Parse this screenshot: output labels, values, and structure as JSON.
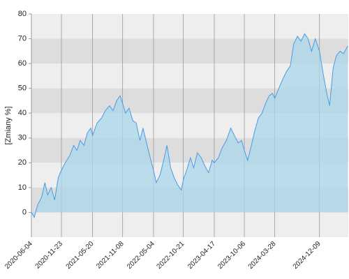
{
  "chart_data": {
    "type": "area",
    "y_label": "[Zmiany %]",
    "x": [
      "2020-06-04",
      "2020-06-20",
      "2020-07-10",
      "2020-08-01",
      "2020-08-20",
      "2020-09-05",
      "2020-09-25",
      "2020-10-15",
      "2020-11-05",
      "2020-11-23",
      "2020-12-15",
      "2021-01-10",
      "2021-02-01",
      "2021-02-20",
      "2021-03-10",
      "2021-04-01",
      "2021-04-20",
      "2021-05-10",
      "2021-05-20",
      "2021-06-15",
      "2021-07-10",
      "2021-08-01",
      "2021-08-25",
      "2021-09-15",
      "2021-10-05",
      "2021-10-25",
      "2021-11-08",
      "2021-11-25",
      "2021-12-15",
      "2022-01-05",
      "2022-01-25",
      "2022-02-15",
      "2022-03-05",
      "2022-03-25",
      "2022-04-15",
      "2022-05-04",
      "2022-05-20",
      "2022-06-10",
      "2022-07-01",
      "2022-07-20",
      "2022-08-10",
      "2022-08-30",
      "2022-09-20",
      "2022-10-10",
      "2022-10-21",
      "2022-11-10",
      "2022-12-01",
      "2022-12-20",
      "2023-01-10",
      "2023-02-01",
      "2023-02-20",
      "2023-03-15",
      "2023-04-05",
      "2023-04-17",
      "2023-05-10",
      "2023-06-01",
      "2023-06-25",
      "2023-07-20",
      "2023-08-10",
      "2023-09-01",
      "2023-09-20",
      "2023-10-06",
      "2023-10-25",
      "2023-11-15",
      "2023-12-05",
      "2023-12-25",
      "2024-01-15",
      "2024-02-05",
      "2024-02-25",
      "2024-03-15",
      "2024-03-28",
      "2024-04-20",
      "2024-05-15",
      "2024-06-05",
      "2024-06-25",
      "2024-07-15",
      "2024-08-05",
      "2024-08-25",
      "2024-09-15",
      "2024-10-05",
      "2024-10-25",
      "2024-11-15",
      "2024-12-09",
      "2025-01-01",
      "2025-01-20",
      "2025-02-05",
      "2025-02-25",
      "2025-03-15",
      "2025-04-05",
      "2025-04-25",
      "2025-05-20"
    ],
    "values": [
      0,
      -2,
      3,
      6,
      12,
      7,
      10,
      5,
      14,
      17,
      20,
      23,
      27,
      25,
      29,
      27,
      32,
      34,
      31,
      36,
      38,
      41,
      43,
      41,
      45,
      47,
      44,
      40,
      42,
      37,
      36,
      29,
      34,
      28,
      22,
      17,
      12,
      15,
      21,
      27,
      18,
      14,
      11,
      9,
      13,
      17,
      22,
      18,
      24,
      22,
      19,
      16,
      21,
      20,
      22,
      26,
      29,
      34,
      31,
      28,
      29,
      25,
      21,
      27,
      33,
      38,
      40,
      44,
      47,
      48,
      46,
      50,
      54,
      57,
      59,
      68,
      71,
      69,
      72,
      70,
      65,
      70,
      65,
      55,
      48,
      43,
      58,
      63,
      65,
      64,
      67
    ],
    "line_color": "#4a9be8",
    "fill_color": "#a8d5ea",
    "xlim": [
      "2020-06-04",
      "2025-05-23"
    ],
    "xticks": [
      "2020-06-04",
      "2020-11-23",
      "2021-05-20",
      "2021-11-08",
      "2022-05-04",
      "2022-10-21",
      "2023-04-17",
      "2023-10-06",
      "2024-03-28",
      "2024-12-09"
    ],
    "ylim": [
      -10,
      80
    ],
    "yticks": [
      0,
      10,
      20,
      30,
      40,
      50,
      60,
      70,
      80
    ],
    "bands": true,
    "grid": true
  }
}
